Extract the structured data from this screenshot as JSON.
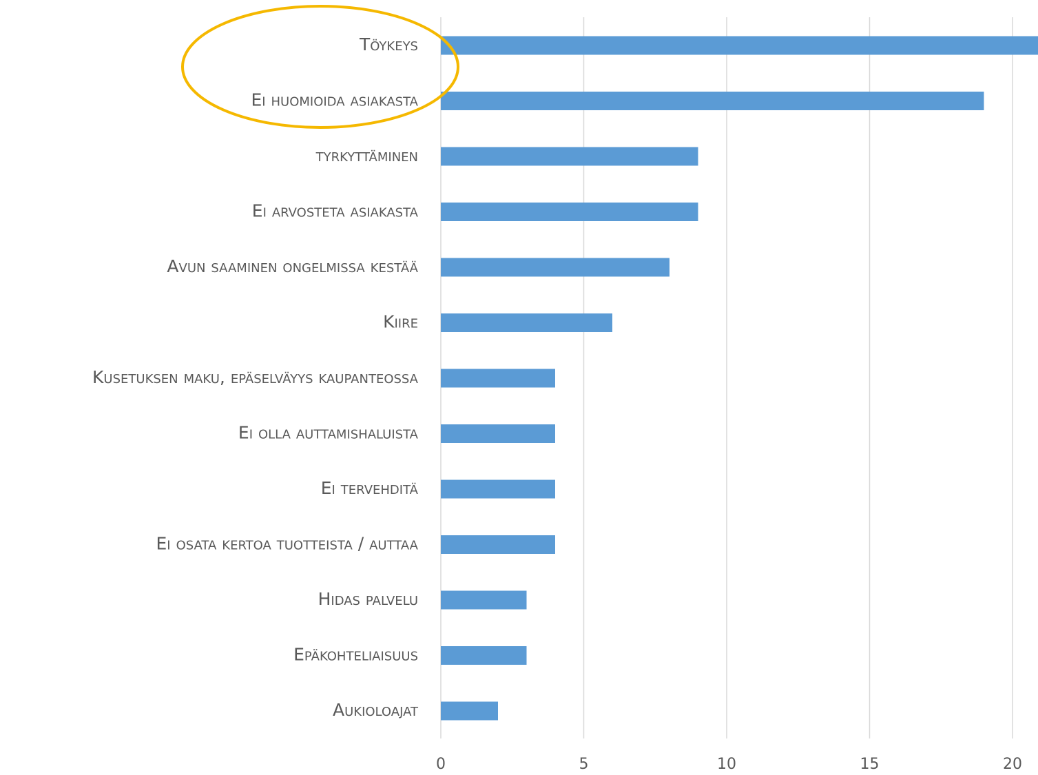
{
  "chart_data": {
    "type": "bar",
    "orientation": "horizontal",
    "categories": [
      "Töykeys",
      "Ei huomioida asiakasta",
      "tyrkyttäminen",
      "Ei arvosteta asiakasta",
      "Avun saaminen ongelmissa kestää",
      "Kiire",
      "Kusetuksen maku, epäselväyys kaupanteossa",
      "Ei olla auttamishaluista",
      "Ei tervehditä",
      "Ei osata kertoa tuotteista / auttaa",
      "Hidas palvelu",
      "Epäkohteliaisuus",
      "Aukioloajat"
    ],
    "values": [
      21,
      19,
      9,
      9,
      8,
      6,
      4,
      4,
      4,
      4,
      3,
      3,
      2
    ],
    "color": "#5b9bd5",
    "xlim": [
      0,
      21
    ],
    "xticks": [
      0,
      5,
      10,
      15,
      20
    ],
    "grid": true
  }
}
